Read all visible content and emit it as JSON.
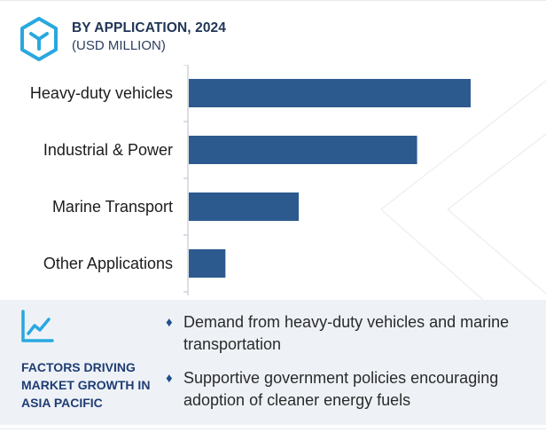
{
  "header": {
    "title": "BY APPLICATION, 2024",
    "subtitle": "(USD MILLION)",
    "icon": "cube-icon",
    "icon_color": "#29a8df"
  },
  "chart_data": {
    "type": "bar",
    "orientation": "horizontal",
    "categories": [
      "Heavy-duty vehicles",
      "Industrial & Power",
      "Marine Transport",
      "Other Applications"
    ],
    "values": [
      100,
      81,
      39,
      13
    ],
    "value_labels_shown": false,
    "xlim": [
      0,
      100
    ],
    "bar_color": "#2d5a8e",
    "grid": false
  },
  "factors": {
    "title": "FACTORS DRIVING MARKET GROWTH IN ASIA PACIFIC",
    "icon": "trend-chart-icon",
    "bullets": [
      "Demand from heavy-duty vehicles and marine transportation",
      "Supportive government policies encouraging adoption of cleaner energy fuels"
    ],
    "bullet_symbol": "♦",
    "accent_color": "#1f4f8f",
    "background_color": "#eef2f7"
  }
}
